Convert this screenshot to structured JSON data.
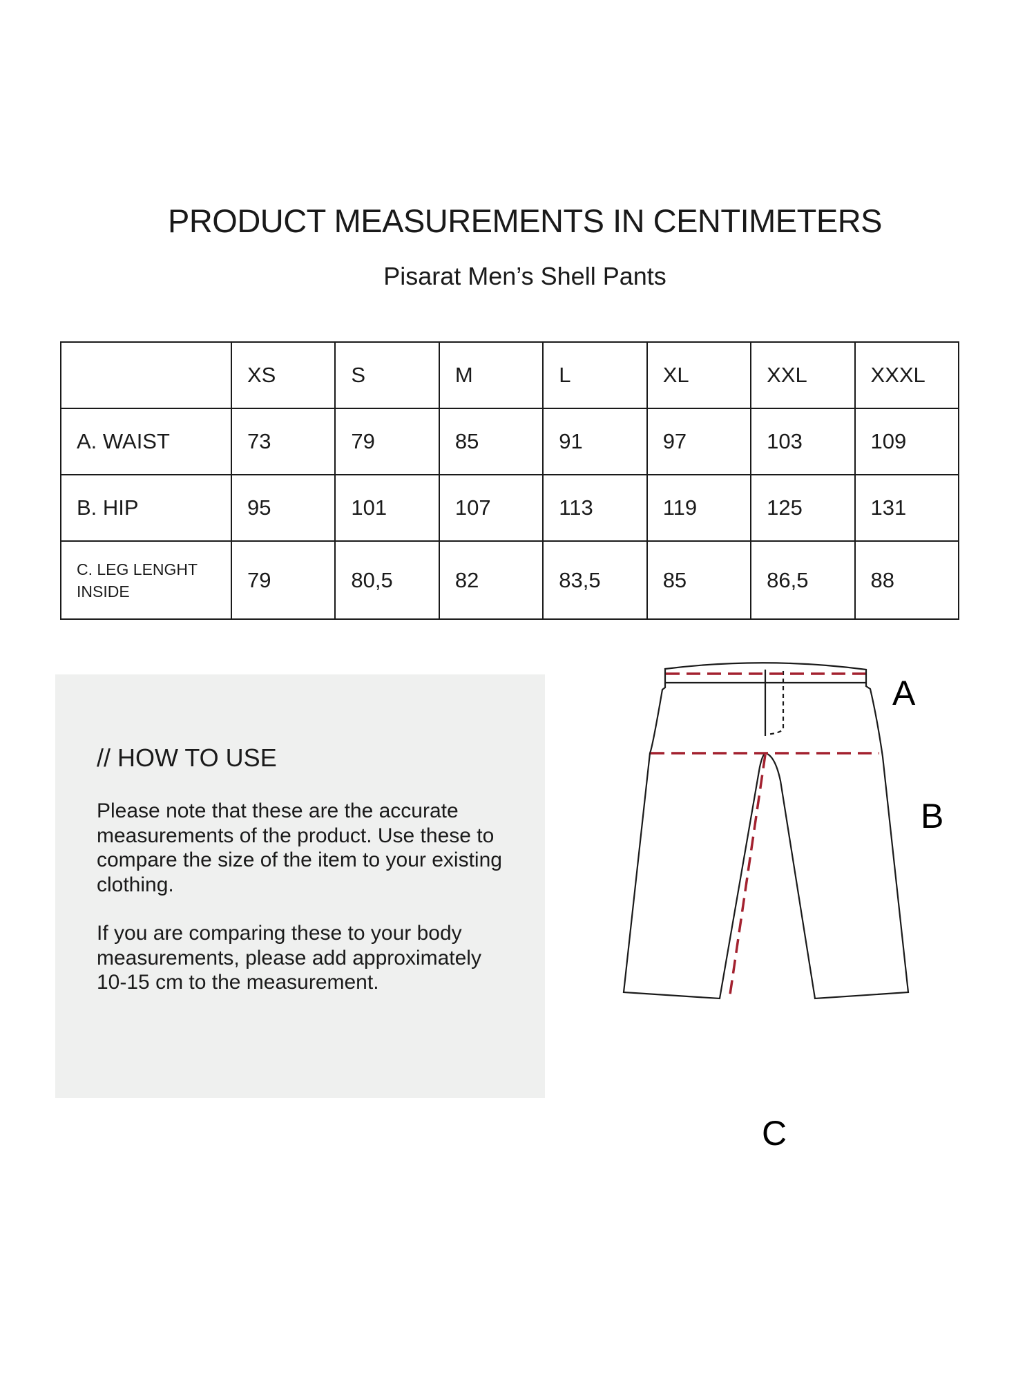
{
  "header": {
    "title": "PRODUCT MEASUREMENTS IN CENTIMETERS",
    "subtitle": "Pisarat Men’s Shell Pants"
  },
  "table": {
    "sizes": [
      "XS",
      "S",
      "M",
      "L",
      "XL",
      "XXL",
      "XXXL"
    ],
    "rows": [
      {
        "label": "A. WAIST",
        "values": [
          "73",
          "79",
          "85",
          "91",
          "97",
          "103",
          "109"
        ]
      },
      {
        "label": "B. HIP",
        "values": [
          "95",
          "101",
          "107",
          "113",
          "119",
          "125",
          "131"
        ]
      },
      {
        "label_line1": "C. LEG LENGHT",
        "label_line2": "INSIDE",
        "values": [
          "79",
          "80,5",
          "82",
          "83,5",
          "85",
          "86,5",
          "88"
        ]
      }
    ]
  },
  "how_to_use": {
    "heading": "// HOW TO USE",
    "paragraph1": "Please note that these are the accurate measurements of the product. Use these to compare the size of the item to your existing clothing.",
    "paragraph2": "If you are comparing these to your body measurements, please add approximately 10-15 cm to the measurement."
  },
  "diagram": {
    "labels": {
      "a": "A",
      "b": "B",
      "c": "C"
    },
    "measure_line_color": "#a3212f",
    "outline_color": "#1a1a1a"
  }
}
